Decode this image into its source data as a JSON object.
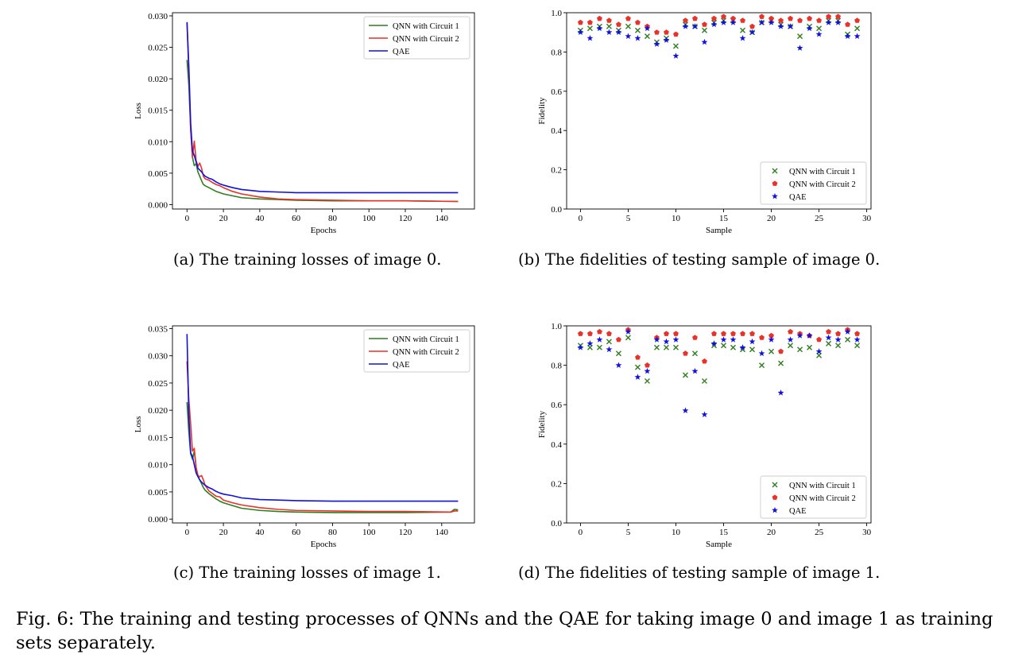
{
  "figure_caption": "Fig. 6: The training and testing processes of QNNs and the QAE for taking image 0 and image 1 as training sets separately.",
  "subcaptions": {
    "a": "(a) The training losses of image 0.",
    "b": "(b) The fidelities of testing sample of image 0.",
    "c": "(c) The training losses of image 1.",
    "d": "(d) The fidelities of testing sample of image 1."
  },
  "colors": {
    "green": "#2e7d1f",
    "red": "#e8322a",
    "blue": "#1010e0"
  },
  "chart_data": [
    {
      "id": "a",
      "type": "line",
      "xlabel": "Epochs",
      "ylabel": "Loss",
      "xlim": [
        -8,
        158
      ],
      "ylim": [
        -0.0007,
        0.0305
      ],
      "xticks": [
        0,
        20,
        40,
        60,
        80,
        100,
        120,
        140
      ],
      "yticks": [
        0.0,
        0.005,
        0.01,
        0.015,
        0.02,
        0.025,
        0.03
      ],
      "ytick_labels": [
        "0.000",
        "0.005",
        "0.010",
        "0.015",
        "0.020",
        "0.025",
        "0.030"
      ],
      "grid": false,
      "legend_position": "top-right",
      "series": [
        {
          "name": "QNN with Circuit 1",
          "color": "#2e7d1f",
          "x": [
            0,
            1,
            2,
            3,
            4,
            5,
            6,
            7,
            8,
            9,
            10,
            12,
            14,
            16,
            18,
            20,
            25,
            30,
            40,
            50,
            60,
            80,
            100,
            120,
            149
          ],
          "y": [
            0.023,
            0.019,
            0.012,
            0.0075,
            0.0062,
            0.0065,
            0.0052,
            0.0045,
            0.0038,
            0.0032,
            0.003,
            0.0027,
            0.0024,
            0.0021,
            0.0019,
            0.0017,
            0.0014,
            0.0011,
            0.0009,
            0.0008,
            0.0007,
            0.0006,
            0.0006,
            0.0006,
            0.0005
          ]
        },
        {
          "name": "QNN with Circuit 2",
          "color": "#e8322a",
          "x": [
            0,
            1,
            2,
            3,
            4,
            5,
            6,
            7,
            8,
            9,
            10,
            12,
            14,
            16,
            18,
            20,
            25,
            30,
            40,
            50,
            60,
            80,
            100,
            120,
            149
          ],
          "y": [
            0.029,
            0.021,
            0.012,
            0.0075,
            0.0101,
            0.007,
            0.0061,
            0.0066,
            0.0058,
            0.0045,
            0.0041,
            0.0039,
            0.0035,
            0.0032,
            0.003,
            0.0027,
            0.0021,
            0.0017,
            0.0012,
            0.0009,
            0.0008,
            0.0007,
            0.0006,
            0.0006,
            0.0005
          ]
        },
        {
          "name": "QAE",
          "color": "#1010e0",
          "x": [
            0,
            1,
            2,
            3,
            4,
            5,
            6,
            7,
            8,
            9,
            10,
            12,
            14,
            16,
            18,
            20,
            25,
            30,
            40,
            50,
            60,
            80,
            100,
            120,
            149
          ],
          "y": [
            0.029,
            0.022,
            0.013,
            0.0085,
            0.0078,
            0.0068,
            0.0058,
            0.0055,
            0.0052,
            0.0048,
            0.0045,
            0.0042,
            0.004,
            0.0036,
            0.0033,
            0.0031,
            0.0027,
            0.0024,
            0.0021,
            0.002,
            0.0019,
            0.0019,
            0.0019,
            0.0019,
            0.0019
          ]
        }
      ]
    },
    {
      "id": "b",
      "type": "scatter",
      "xlabel": "Sample",
      "ylabel": "Fidelity",
      "xlim": [
        -1.45,
        30.45
      ],
      "ylim": [
        0.0,
        1.0
      ],
      "xticks": [
        0,
        5,
        10,
        15,
        20,
        25,
        30
      ],
      "yticks": [
        0.0,
        0.2,
        0.4,
        0.6,
        0.8,
        1.0
      ],
      "ytick_labels": [
        "0.0",
        "0.2",
        "0.4",
        "0.6",
        "0.8",
        "1.0"
      ],
      "grid": false,
      "legend_position": "bottom-right",
      "series": [
        {
          "name": "QNN with Circuit 1",
          "marker": "x",
          "color": "#2e7d1f",
          "x": [
            0,
            1,
            2,
            3,
            4,
            5,
            6,
            7,
            8,
            9,
            10,
            11,
            12,
            13,
            14,
            15,
            16,
            17,
            18,
            19,
            20,
            21,
            22,
            23,
            24,
            25,
            26,
            27,
            28,
            29
          ],
          "y": [
            0.91,
            0.92,
            0.93,
            0.93,
            0.91,
            0.93,
            0.91,
            0.88,
            0.85,
            0.87,
            0.83,
            0.94,
            0.93,
            0.91,
            0.95,
            0.96,
            0.96,
            0.91,
            0.9,
            0.95,
            0.96,
            0.94,
            0.93,
            0.88,
            0.93,
            0.92,
            0.96,
            0.96,
            0.89,
            0.92
          ]
        },
        {
          "name": "QNN with Circuit 2",
          "marker": "pentagon",
          "color": "#e8322a",
          "x": [
            0,
            1,
            2,
            3,
            4,
            5,
            6,
            7,
            8,
            9,
            10,
            11,
            12,
            13,
            14,
            15,
            16,
            17,
            18,
            19,
            20,
            21,
            22,
            23,
            24,
            25,
            26,
            27,
            28,
            29
          ],
          "y": [
            0.95,
            0.95,
            0.97,
            0.96,
            0.94,
            0.97,
            0.95,
            0.93,
            0.9,
            0.9,
            0.89,
            0.96,
            0.97,
            0.94,
            0.97,
            0.98,
            0.97,
            0.96,
            0.93,
            0.98,
            0.97,
            0.96,
            0.97,
            0.96,
            0.97,
            0.96,
            0.98,
            0.98,
            0.94,
            0.96
          ]
        },
        {
          "name": "QAE",
          "marker": "star",
          "color": "#1010e0",
          "x": [
            0,
            1,
            2,
            3,
            4,
            5,
            6,
            7,
            8,
            9,
            10,
            11,
            12,
            13,
            14,
            15,
            16,
            17,
            18,
            19,
            20,
            21,
            22,
            23,
            24,
            25,
            26,
            27,
            28,
            29
          ],
          "y": [
            0.9,
            0.87,
            0.92,
            0.9,
            0.9,
            0.88,
            0.87,
            0.92,
            0.84,
            0.86,
            0.78,
            0.93,
            0.93,
            0.85,
            0.94,
            0.95,
            0.95,
            0.87,
            0.9,
            0.95,
            0.95,
            0.93,
            0.93,
            0.82,
            0.92,
            0.89,
            0.95,
            0.95,
            0.88,
            0.88
          ]
        }
      ]
    },
    {
      "id": "c",
      "type": "line",
      "xlabel": "Epochs",
      "ylabel": "Loss",
      "xlim": [
        -8,
        158
      ],
      "ylim": [
        -0.0007,
        0.0355
      ],
      "xticks": [
        0,
        20,
        40,
        60,
        80,
        100,
        120,
        140
      ],
      "yticks": [
        0.0,
        0.005,
        0.01,
        0.015,
        0.02,
        0.025,
        0.03,
        0.035
      ],
      "ytick_labels": [
        "0.000",
        "0.005",
        "0.010",
        "0.015",
        "0.020",
        "0.025",
        "0.030",
        "0.035"
      ],
      "grid": false,
      "legend_position": "top-right",
      "series": [
        {
          "name": "QNN with Circuit 1",
          "color": "#2e7d1f",
          "x": [
            0,
            1,
            2,
            3,
            4,
            5,
            6,
            7,
            8,
            9,
            10,
            12,
            14,
            16,
            18,
            20,
            25,
            30,
            40,
            50,
            60,
            80,
            100,
            120,
            145,
            147,
            149
          ],
          "y": [
            0.0215,
            0.016,
            0.012,
            0.011,
            0.0125,
            0.0095,
            0.008,
            0.0072,
            0.0065,
            0.0058,
            0.0053,
            0.0047,
            0.0042,
            0.0037,
            0.0033,
            0.003,
            0.0025,
            0.002,
            0.0016,
            0.0014,
            0.0013,
            0.0012,
            0.0012,
            0.0012,
            0.0013,
            0.0018,
            0.0017
          ]
        },
        {
          "name": "QNN with Circuit 2",
          "color": "#e8322a",
          "x": [
            0,
            1,
            2,
            3,
            4,
            5,
            6,
            7,
            8,
            9,
            10,
            12,
            14,
            16,
            18,
            20,
            25,
            30,
            40,
            50,
            60,
            80,
            100,
            120,
            145,
            147,
            149
          ],
          "y": [
            0.029,
            0.022,
            0.0175,
            0.0125,
            0.013,
            0.0095,
            0.008,
            0.0078,
            0.008,
            0.0072,
            0.0062,
            0.0052,
            0.0047,
            0.0042,
            0.0041,
            0.0035,
            0.003,
            0.0026,
            0.0021,
            0.0018,
            0.0016,
            0.0015,
            0.0014,
            0.0014,
            0.0013,
            0.0015,
            0.0015
          ]
        },
        {
          "name": "QAE",
          "color": "#1010e0",
          "x": [
            0,
            1,
            2,
            3,
            4,
            5,
            6,
            7,
            8,
            9,
            10,
            12,
            14,
            16,
            18,
            20,
            25,
            30,
            40,
            50,
            60,
            80,
            100,
            120,
            149
          ],
          "y": [
            0.034,
            0.019,
            0.0122,
            0.0115,
            0.01,
            0.0085,
            0.0078,
            0.0072,
            0.0068,
            0.0065,
            0.0062,
            0.0058,
            0.0055,
            0.0051,
            0.0048,
            0.0046,
            0.0043,
            0.0039,
            0.0036,
            0.0035,
            0.0034,
            0.0033,
            0.0033,
            0.0033,
            0.0033
          ]
        }
      ]
    },
    {
      "id": "d",
      "type": "scatter",
      "xlabel": "Sample",
      "ylabel": "Fidelity",
      "xlim": [
        -1.45,
        30.45
      ],
      "ylim": [
        0.0,
        1.0
      ],
      "xticks": [
        0,
        5,
        10,
        15,
        20,
        25,
        30
      ],
      "yticks": [
        0.0,
        0.2,
        0.4,
        0.6,
        0.8,
        1.0
      ],
      "ytick_labels": [
        "0.0",
        "0.2",
        "0.4",
        "0.6",
        "0.8",
        "1.0"
      ],
      "grid": false,
      "legend_position": "bottom-right",
      "series": [
        {
          "name": "QNN with Circuit 1",
          "marker": "x",
          "color": "#2e7d1f",
          "x": [
            0,
            1,
            2,
            3,
            4,
            5,
            6,
            7,
            8,
            9,
            10,
            11,
            12,
            13,
            14,
            15,
            16,
            17,
            18,
            19,
            20,
            21,
            22,
            23,
            24,
            25,
            26,
            27,
            28,
            29
          ],
          "y": [
            0.9,
            0.89,
            0.89,
            0.92,
            0.86,
            0.94,
            0.79,
            0.72,
            0.89,
            0.89,
            0.89,
            0.75,
            0.86,
            0.72,
            0.9,
            0.9,
            0.89,
            0.88,
            0.88,
            0.8,
            0.87,
            0.81,
            0.9,
            0.88,
            0.89,
            0.85,
            0.91,
            0.9,
            0.93,
            0.9
          ]
        },
        {
          "name": "QNN with Circuit 2",
          "marker": "pentagon",
          "color": "#e8322a",
          "x": [
            0,
            1,
            2,
            3,
            4,
            5,
            6,
            7,
            8,
            9,
            10,
            11,
            12,
            13,
            14,
            15,
            16,
            17,
            18,
            19,
            20,
            21,
            22,
            23,
            24,
            25,
            26,
            27,
            28,
            29
          ],
          "y": [
            0.96,
            0.96,
            0.97,
            0.96,
            0.93,
            0.98,
            0.84,
            0.8,
            0.94,
            0.96,
            0.96,
            0.86,
            0.94,
            0.82,
            0.96,
            0.96,
            0.96,
            0.96,
            0.96,
            0.94,
            0.95,
            0.87,
            0.97,
            0.96,
            0.95,
            0.93,
            0.97,
            0.96,
            0.98,
            0.96
          ]
        },
        {
          "name": "QAE",
          "marker": "star",
          "color": "#1010e0",
          "x": [
            0,
            1,
            2,
            3,
            4,
            5,
            6,
            7,
            8,
            9,
            10,
            11,
            12,
            13,
            14,
            15,
            16,
            17,
            18,
            19,
            20,
            21,
            22,
            23,
            24,
            25,
            26,
            27,
            28,
            29
          ],
          "y": [
            0.89,
            0.91,
            0.93,
            0.88,
            0.8,
            0.97,
            0.74,
            0.77,
            0.93,
            0.92,
            0.93,
            0.57,
            0.77,
            0.55,
            0.91,
            0.93,
            0.93,
            0.89,
            0.92,
            0.86,
            0.93,
            0.66,
            0.93,
            0.95,
            0.95,
            0.87,
            0.94,
            0.93,
            0.97,
            0.93
          ]
        }
      ]
    }
  ]
}
